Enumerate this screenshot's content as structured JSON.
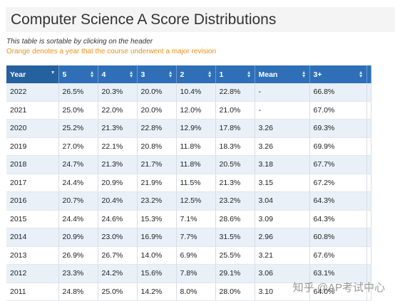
{
  "page": {
    "title": "Computer Science A Score Distributions",
    "sortable_note": "This table is sortable by clicking on the header",
    "revision_note": "Orange denotes a year that the course underwent a major revision",
    "watermark": "知乎 @AP考试中心"
  },
  "colors": {
    "header_bg": "#2e6fb7",
    "revision_note": "#e8901a",
    "row_alt": "#e9f0f8"
  },
  "table": {
    "headers": [
      "Year",
      "5",
      "4",
      "3",
      "2",
      "1",
      "Mean",
      "3+"
    ],
    "rows": [
      [
        "2022",
        "26.5%",
        "20.3%",
        "20.0%",
        "10.4%",
        "22.8%",
        "-",
        "66.8%"
      ],
      [
        "2021",
        "25.0%",
        "22.0%",
        "20.0%",
        "12.0%",
        "21.0%",
        "-",
        "67.0%"
      ],
      [
        "2020",
        "25.2%",
        "21.3%",
        "22.8%",
        "12.9%",
        "17.8%",
        "3.26",
        "69.3%"
      ],
      [
        "2019",
        "27.0%",
        "22.1%",
        "20.8%",
        "11.8%",
        "18.3%",
        "3.26",
        "69.9%"
      ],
      [
        "2018",
        "24.7%",
        "21.3%",
        "21.7%",
        "11.8%",
        "20.5%",
        "3.18",
        "67.7%"
      ],
      [
        "2017",
        "24.4%",
        "20.9%",
        "21.9%",
        "11.5%",
        "21.3%",
        "3.15",
        "67.2%"
      ],
      [
        "2016",
        "20.7%",
        "20.4%",
        "23.2%",
        "12.5%",
        "23.2%",
        "3.04",
        "64.3%"
      ],
      [
        "2015",
        "24.4%",
        "24.6%",
        "15.3%",
        "7.1%",
        "28.6%",
        "3.09",
        "64.3%"
      ],
      [
        "2014",
        "20.9%",
        "23.0%",
        "16.9%",
        "7.7%",
        "31.5%",
        "2.96",
        "60.8%"
      ],
      [
        "2013",
        "26.9%",
        "26.7%",
        "14.0%",
        "6.9%",
        "25.5%",
        "3.21",
        "67.6%"
      ],
      [
        "2012",
        "23.3%",
        "24.2%",
        "15.6%",
        "7.8%",
        "29.1%",
        "3.06",
        "63.1%"
      ],
      [
        "2011",
        "24.8%",
        "25.0%",
        "14.2%",
        "8.0%",
        "28.0%",
        "3.10",
        "64.0%"
      ]
    ]
  }
}
